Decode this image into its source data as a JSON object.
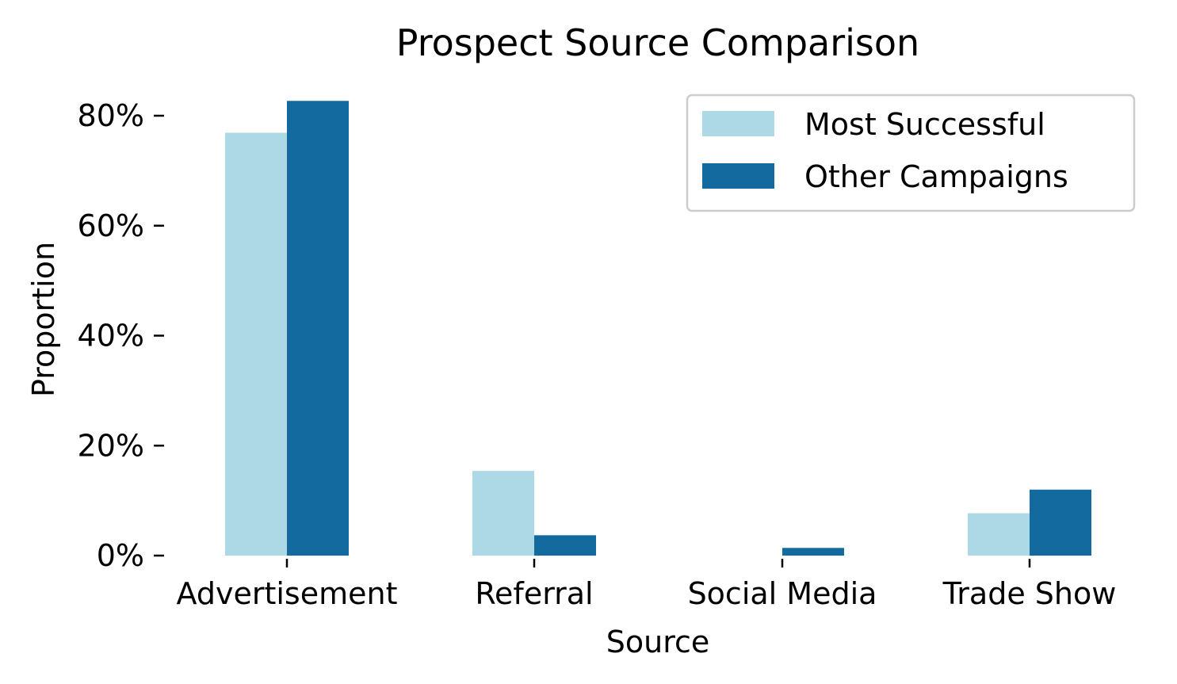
{
  "chart_data": {
    "type": "bar",
    "title": "Prospect Source Comparison",
    "xlabel": "Source",
    "ylabel": "Proportion",
    "categories": [
      "Advertisement",
      "Referral",
      "Social Media",
      "Trade Show"
    ],
    "series": [
      {
        "name": "Most Successful",
        "color": "#add8e6",
        "values": [
          0.769,
          0.154,
          0.0,
          0.077
        ]
      },
      {
        "name": "Other Campaigns",
        "color": "#126a9e",
        "values": [
          0.827,
          0.037,
          0.014,
          0.12
        ]
      }
    ],
    "ylim": [
      0,
      0.85
    ],
    "yticks": [
      0,
      0.2,
      0.4,
      0.6,
      0.8
    ],
    "ytick_labels": [
      "0%",
      "20%",
      "40%",
      "60%",
      "80%"
    ],
    "grid": false,
    "legend_position": "top-right"
  }
}
